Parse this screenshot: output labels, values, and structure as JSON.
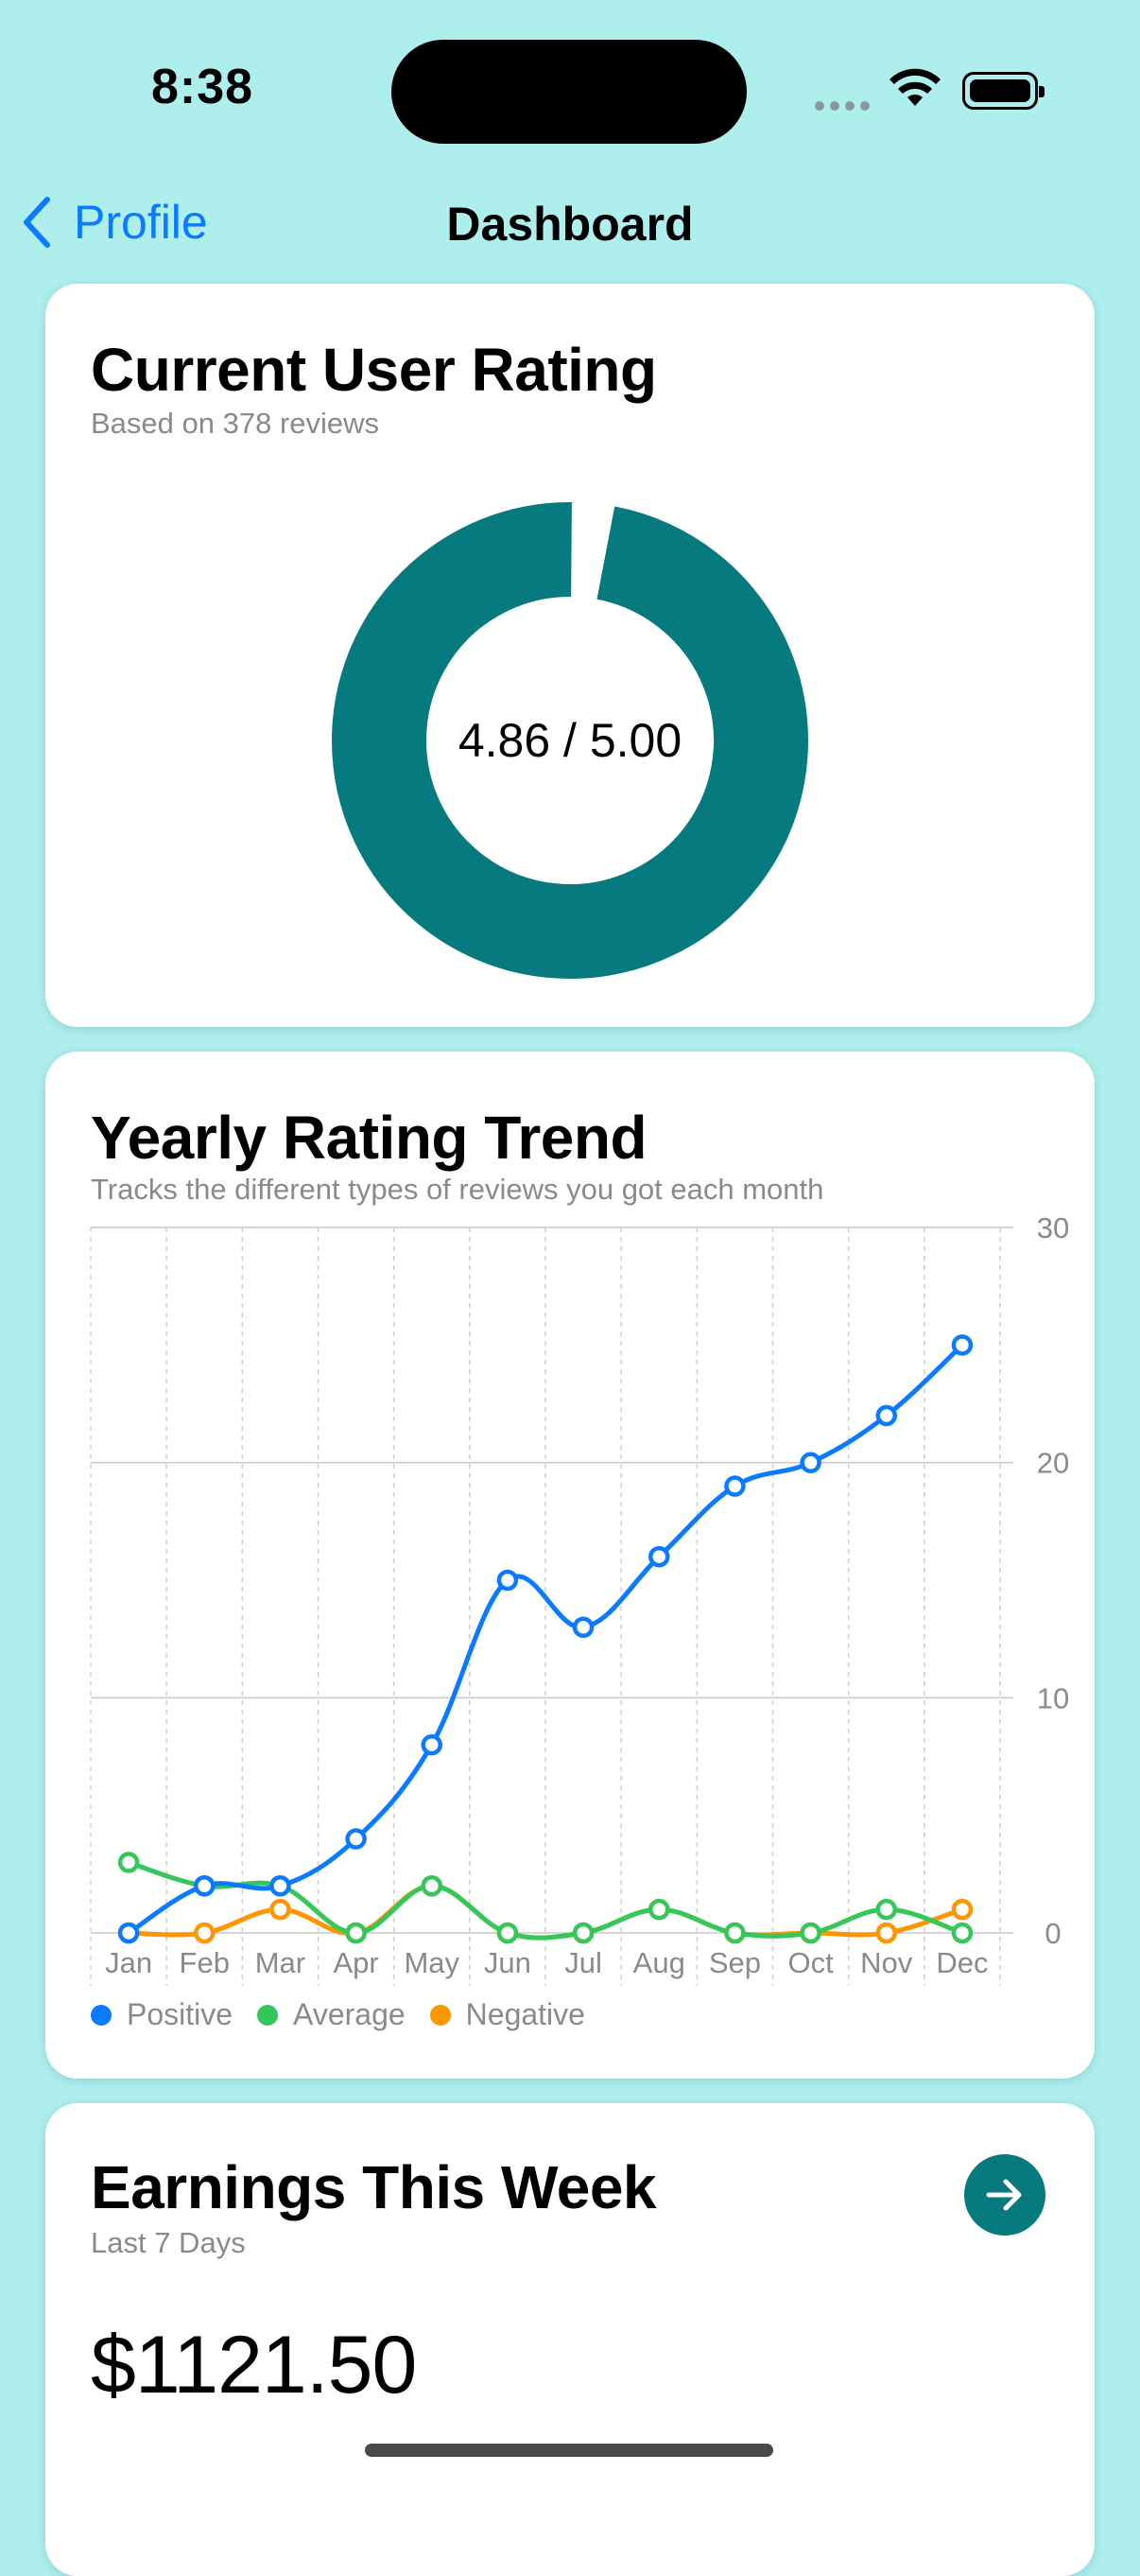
{
  "status": {
    "time": "8:38"
  },
  "nav": {
    "back_label": "Profile",
    "title": "Dashboard"
  },
  "rating_card": {
    "title": "Current User Rating",
    "subtitle": "Based on 378 reviews",
    "rating_text": "4.86 / 5.00",
    "rating_value": 4.86,
    "rating_max": 5.0,
    "ring_color": "#077a80"
  },
  "trend_card": {
    "title": "Yearly Rating Trend",
    "subtitle": "Tracks the different types of reviews you got each month",
    "legend": [
      {
        "label": "Positive",
        "color": "#0a7aff"
      },
      {
        "label": "Average",
        "color": "#34c759"
      },
      {
        "label": "Negative",
        "color": "#ff9500"
      }
    ]
  },
  "chart_data": {
    "type": "line",
    "categories": [
      "Jan",
      "Feb",
      "Mar",
      "Apr",
      "May",
      "Jun",
      "Jul",
      "Aug",
      "Sep",
      "Oct",
      "Nov",
      "Dec"
    ],
    "series": [
      {
        "name": "Positive",
        "color": "#0a7aff",
        "values": [
          0,
          2,
          2,
          4,
          8,
          15,
          13,
          16,
          19,
          20,
          22,
          25
        ]
      },
      {
        "name": "Average",
        "color": "#34c759",
        "values": [
          3,
          2,
          2,
          0,
          2,
          0,
          0,
          1,
          0,
          0,
          1,
          0
        ]
      },
      {
        "name": "Negative",
        "color": "#ff9500",
        "values": [
          0,
          0,
          1,
          0,
          2,
          0,
          0,
          1,
          0,
          0,
          0,
          1
        ]
      }
    ],
    "ylim": [
      0,
      30
    ],
    "yticks": [
      "0",
      "10",
      "20",
      "30"
    ],
    "legend_position": "bottom-left",
    "grid": true
  },
  "earnings_card": {
    "title": "Earnings This Week",
    "subtitle": "Last 7 Days",
    "amount": "$1121.50"
  }
}
